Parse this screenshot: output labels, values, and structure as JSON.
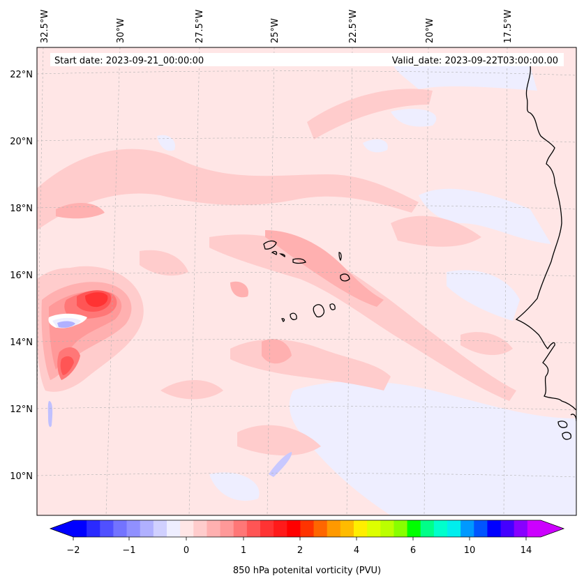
{
  "header": {
    "start_date": "Start date: 2023-09-21_00:00:00",
    "valid_date": "Valid_date: 2023-09-22T03:00:00.00"
  },
  "map": {
    "lon_labels": [
      "32.5°W",
      "30°W",
      "27.5°W",
      "25°W",
      "22.5°W",
      "20°W",
      "17.5°W"
    ],
    "lat_labels": [
      "22°N",
      "20°N",
      "18°N",
      "16°N",
      "14°N",
      "12°N",
      "10°N"
    ],
    "islands": [
      "Santo Antão",
      "São Vicente",
      "Santa Luzia",
      "São Nicolau",
      "Sal",
      "Boa Vista",
      "Brava",
      "Fogo",
      "Santiago",
      "Maio"
    ]
  },
  "colorbar": {
    "title": "850 hPa potenital vorticity (PVU)",
    "tick_labels": [
      "−2",
      "−1",
      "0",
      "1",
      "2",
      "4",
      "6",
      "10",
      "14"
    ],
    "colors": [
      "#0000ff",
      "#2a2aff",
      "#5050ff",
      "#7373ff",
      "#9090ff",
      "#b0b0ff",
      "#d0d0ff",
      "#eeeeff",
      "#ffe6e6",
      "#ffcccc",
      "#ffb0b0",
      "#ff9999",
      "#ff7777",
      "#ff5555",
      "#ff3333",
      "#ff1a1a",
      "#ff0000",
      "#ff3300",
      "#ff6600",
      "#ff9900",
      "#ffbb00",
      "#ffee00",
      "#ddff00",
      "#bbff00",
      "#88ff00",
      "#00ff00",
      "#00ff88",
      "#00ffcc",
      "#00eeee",
      "#0099ff",
      "#0055ff",
      "#0000ff",
      "#4400ff",
      "#8800ff",
      "#cc00ff"
    ],
    "extend_low_color": "#0000ff",
    "extend_high_color": "#cc00ff"
  },
  "chart_data": {
    "type": "heatmap",
    "title": "",
    "variable": "850 hPa potenital vorticity (PVU)",
    "xlim": [
      -32.5,
      -15.5
    ],
    "ylim": [
      9,
      22.8
    ],
    "x_ticks": [
      -32.5,
      -30,
      -27.5,
      -25,
      -22.5,
      -20,
      -17.5
    ],
    "y_ticks": [
      22,
      20,
      18,
      16,
      14,
      12,
      10
    ],
    "levels": [
      -2,
      -1,
      0,
      1,
      2,
      4,
      6,
      10,
      14
    ],
    "features": [
      {
        "name": "vortex max",
        "lon": -30.5,
        "lat": 15.2,
        "value": 2.2
      },
      {
        "name": "secondary max",
        "lon": -31.2,
        "lat": 13.0,
        "value": 1.4
      },
      {
        "name": "negative pocket",
        "lon": -31.9,
        "lat": 14.3,
        "value": -0.7
      }
    ]
  }
}
